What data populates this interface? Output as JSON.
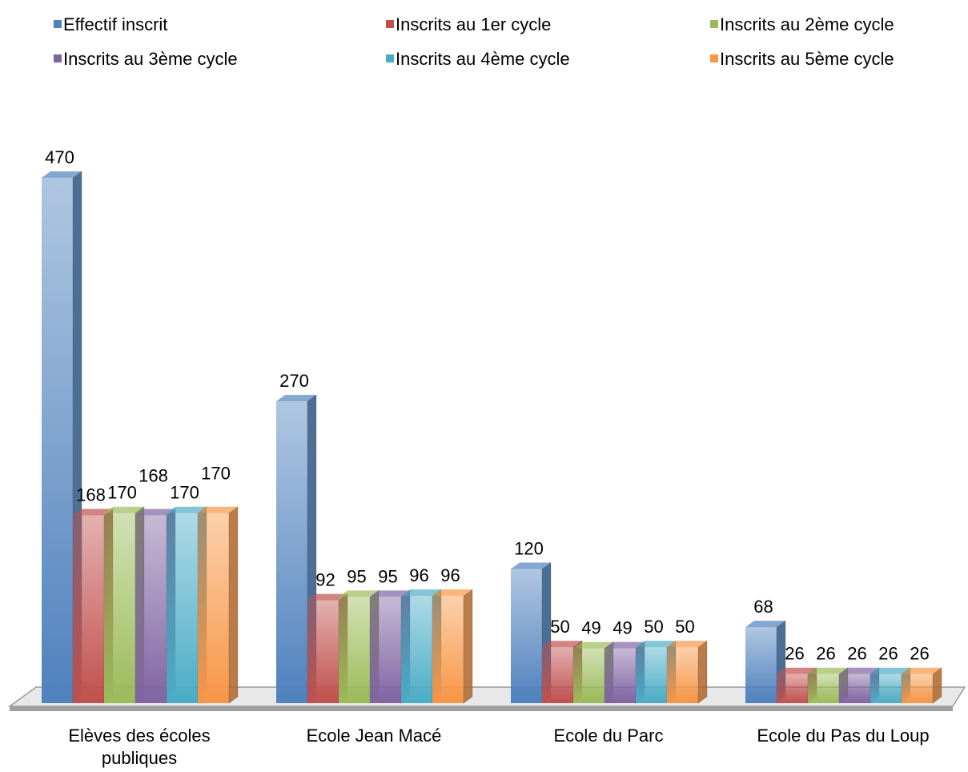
{
  "chart_data": {
    "type": "bar3d",
    "categories": [
      "Elèves des écoles publiques",
      "Ecole Jean Macé",
      "Ecole du Parc",
      "Ecole du Pas du Loup"
    ],
    "series": [
      {
        "name": "Effectif inscrit",
        "color": "#4f81bd",
        "values": [
          470,
          270,
          120,
          68
        ]
      },
      {
        "name": "Inscrits au 1er cycle",
        "color": "#c0504d",
        "values": [
          168,
          92,
          50,
          26
        ]
      },
      {
        "name": "Inscrits au 2ème cycle",
        "color": "#9bbb59",
        "values": [
          170,
          95,
          49,
          26
        ]
      },
      {
        "name": "Inscrits au 3ème cycle",
        "color": "#8064a2",
        "values": [
          168,
          95,
          49,
          26
        ]
      },
      {
        "name": "Inscrits au 4ème cycle",
        "color": "#4bacc6",
        "values": [
          170,
          96,
          50,
          26
        ]
      },
      {
        "name": "Inscrits au 5ème cycle",
        "color": "#f79646",
        "values": [
          170,
          96,
          50,
          26
        ]
      }
    ],
    "legend": "top"
  }
}
